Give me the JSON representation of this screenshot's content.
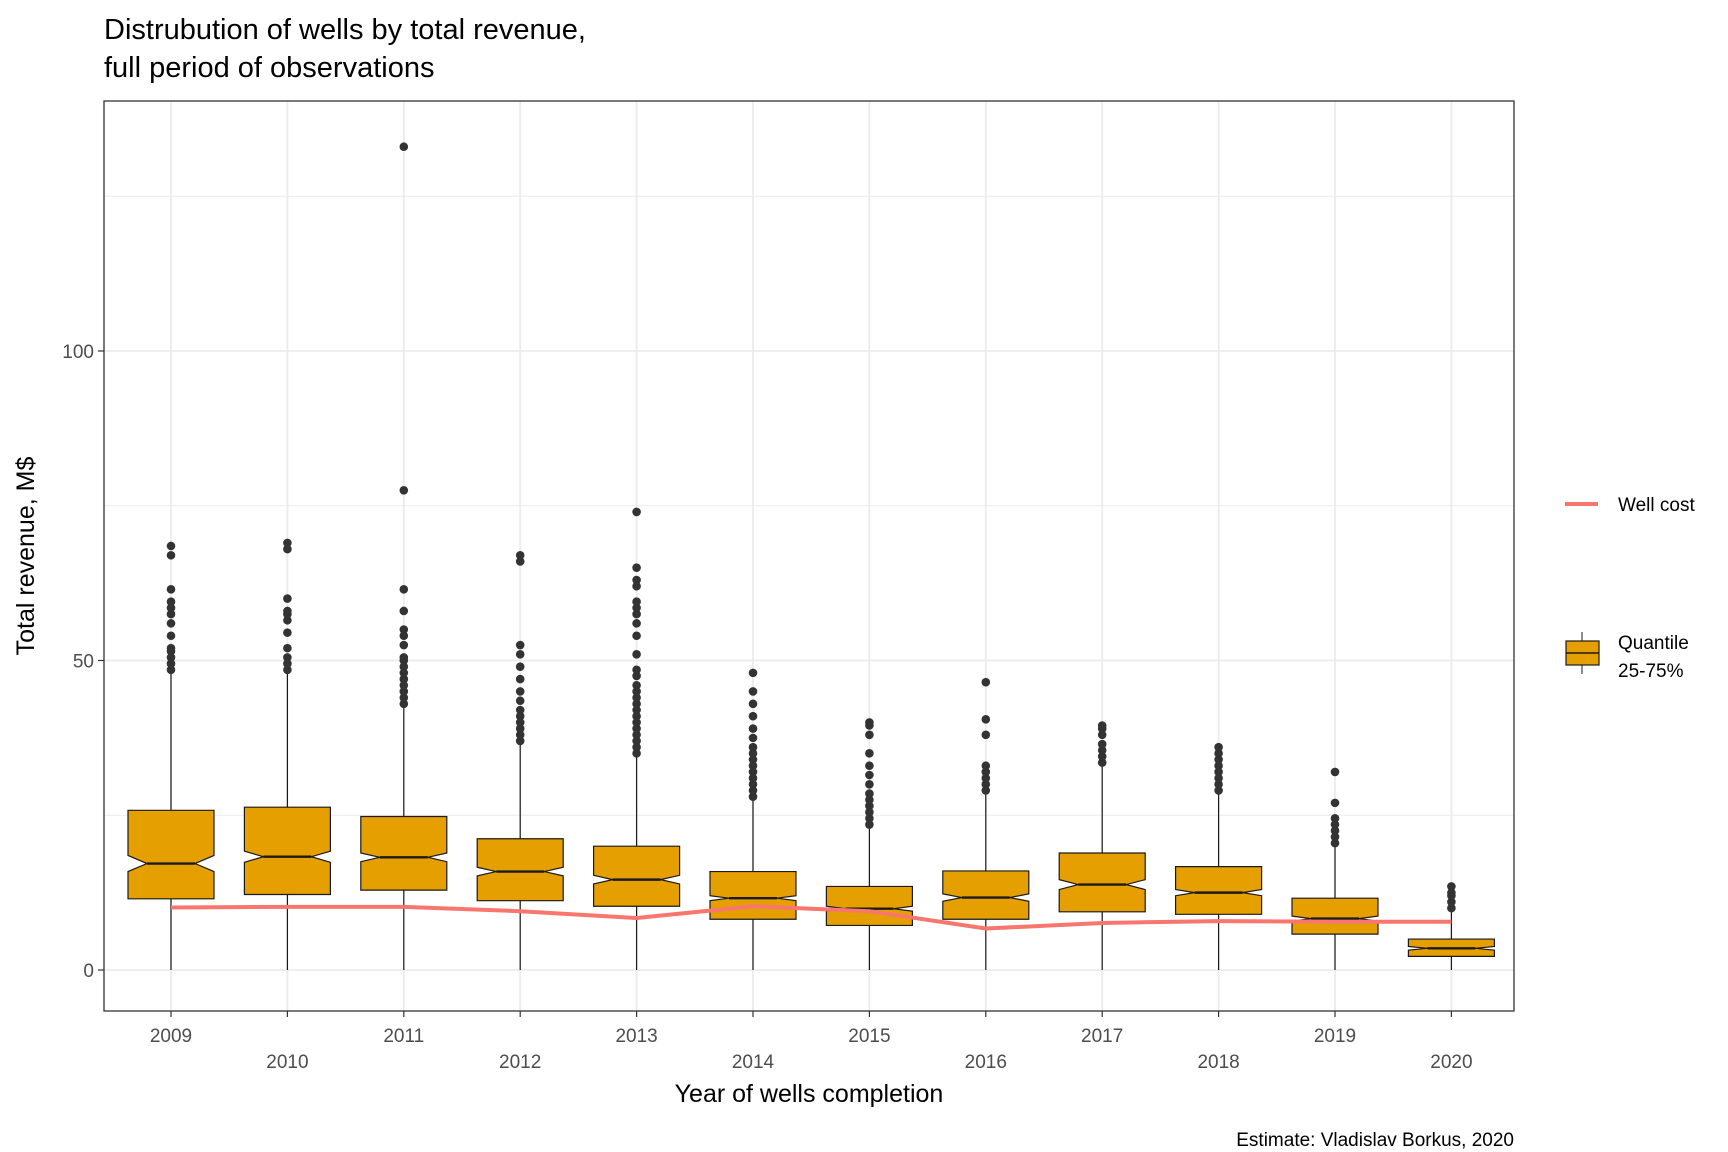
{
  "chart_data": {
    "type": "boxplot",
    "title": "Distrubution of wells by total revenue,",
    "subtitle": "full period of observations",
    "xlabel": "Year of wells completion",
    "ylabel": "Total revenue, M$",
    "caption": "Estimate: Vladislav Borkus, 2020",
    "ylim": [
      -6.5,
      140
    ],
    "yticks": [
      0,
      50,
      100
    ],
    "grid": true,
    "legend_position": "right",
    "colors": {
      "box_fill": "#E69F00",
      "box_stroke": "#1a1a1a",
      "line": "#F8766D",
      "outlier": "#333333",
      "grid": "#ebebeb"
    },
    "legend": {
      "line_label": "Well cost",
      "box_label_line1": "Quantile",
      "box_label_line2": "25-75%"
    },
    "categories": [
      "2009",
      "2010",
      "2011",
      "2012",
      "2013",
      "2014",
      "2015",
      "2016",
      "2017",
      "2018",
      "2019",
      "2020"
    ],
    "boxes": [
      {
        "q1": 11.5,
        "median": 17.2,
        "q3": 25.8,
        "notch_lo": 15.9,
        "notch_hi": 18.5,
        "whisker_lo": 0,
        "whisker_hi": 48.0,
        "outliers": [
          48.5,
          49.5,
          50.5,
          51.5,
          52.0,
          54.0,
          56.0,
          57.5,
          58.5,
          59.5,
          61.5,
          67.0,
          68.5
        ]
      },
      {
        "q1": 12.2,
        "median": 18.3,
        "q3": 26.3,
        "notch_lo": 17.4,
        "notch_hi": 19.2,
        "whisker_lo": 0,
        "whisker_hi": 48.0,
        "outliers": [
          48.5,
          49.5,
          50.5,
          52.0,
          54.5,
          56.5,
          57.5,
          58.0,
          60.0,
          68.0,
          69.0
        ]
      },
      {
        "q1": 12.9,
        "median": 18.2,
        "q3": 24.8,
        "notch_lo": 17.5,
        "notch_hi": 18.9,
        "whisker_lo": 0,
        "whisker_hi": 42.5,
        "outliers": [
          43.0,
          44.0,
          45.0,
          46.0,
          47.0,
          48.0,
          49.0,
          50.0,
          50.5,
          52.5,
          54.0,
          55.0,
          58.0,
          61.5,
          77.5,
          133.0
        ]
      },
      {
        "q1": 11.2,
        "median": 15.9,
        "q3": 21.2,
        "notch_lo": 15.2,
        "notch_hi": 16.6,
        "whisker_lo": 0,
        "whisker_hi": 36.5,
        "outliers": [
          37.0,
          38.0,
          39.0,
          40.0,
          41.0,
          42.0,
          43.5,
          45.0,
          47.0,
          49.0,
          51.0,
          52.5,
          66.0,
          67.0
        ]
      },
      {
        "q1": 10.3,
        "median": 14.6,
        "q3": 20.0,
        "notch_lo": 13.9,
        "notch_hi": 15.3,
        "whisker_lo": 0,
        "whisker_hi": 34.5,
        "outliers": [
          35.0,
          36.0,
          37.0,
          38.0,
          39.0,
          40.0,
          41.0,
          42.0,
          43.0,
          44.0,
          45.0,
          46.0,
          47.5,
          48.5,
          51.0,
          54.0,
          56.0,
          57.5,
          58.5,
          59.5,
          62.0,
          63.0,
          65.0,
          74.0
        ]
      },
      {
        "q1": 8.2,
        "median": 11.6,
        "q3": 15.9,
        "notch_lo": 11.2,
        "notch_hi": 12.0,
        "whisker_lo": 0,
        "whisker_hi": 27.5,
        "outliers": [
          28.0,
          29.0,
          30.0,
          31.0,
          32.0,
          33.0,
          34.0,
          35.0,
          36.0,
          37.5,
          39.0,
          41.0,
          43.0,
          45.0,
          48.0
        ]
      },
      {
        "q1": 7.2,
        "median": 9.9,
        "q3": 13.5,
        "notch_lo": 9.5,
        "notch_hi": 10.3,
        "whisker_lo": 0,
        "whisker_hi": 23.0,
        "outliers": [
          23.5,
          24.5,
          25.5,
          26.5,
          27.5,
          28.5,
          30.0,
          31.5,
          33.0,
          35.0,
          38.0,
          39.5,
          40.0
        ]
      },
      {
        "q1": 8.2,
        "median": 11.7,
        "q3": 16.0,
        "notch_lo": 11.1,
        "notch_hi": 12.3,
        "whisker_lo": 0,
        "whisker_hi": 28.5,
        "outliers": [
          29.0,
          30.0,
          31.0,
          32.0,
          33.0,
          38.0,
          40.5,
          46.5
        ]
      },
      {
        "q1": 9.4,
        "median": 13.8,
        "q3": 18.9,
        "notch_lo": 13.0,
        "notch_hi": 14.6,
        "whisker_lo": 0,
        "whisker_hi": 33.0,
        "outliers": [
          33.5,
          34.5,
          35.5,
          36.5,
          38.0,
          39.0,
          39.5
        ]
      },
      {
        "q1": 9.0,
        "median": 12.5,
        "q3": 16.7,
        "notch_lo": 12.0,
        "notch_hi": 13.0,
        "whisker_lo": 0,
        "whisker_hi": 28.5,
        "outliers": [
          29.0,
          30.0,
          31.0,
          32.0,
          33.0,
          34.0,
          35.0,
          36.0
        ]
      },
      {
        "q1": 5.8,
        "median": 8.3,
        "q3": 11.6,
        "notch_lo": 7.9,
        "notch_hi": 8.7,
        "whisker_lo": 0,
        "whisker_hi": 20.0,
        "outliers": [
          20.5,
          21.5,
          22.5,
          23.5,
          24.5,
          27.0,
          32.0
        ]
      },
      {
        "q1": 2.2,
        "median": 3.5,
        "q3": 5.0,
        "notch_lo": 3.2,
        "notch_hi": 3.8,
        "whisker_lo": 0,
        "whisker_hi": 9.5,
        "outliers": [
          10.0,
          11.0,
          12.0,
          12.5,
          13.5
        ]
      }
    ],
    "well_cost": [
      10.1,
      10.2,
      10.2,
      9.5,
      8.4,
      10.3,
      9.5,
      6.7,
      7.6,
      7.9,
      7.8,
      7.8
    ]
  }
}
